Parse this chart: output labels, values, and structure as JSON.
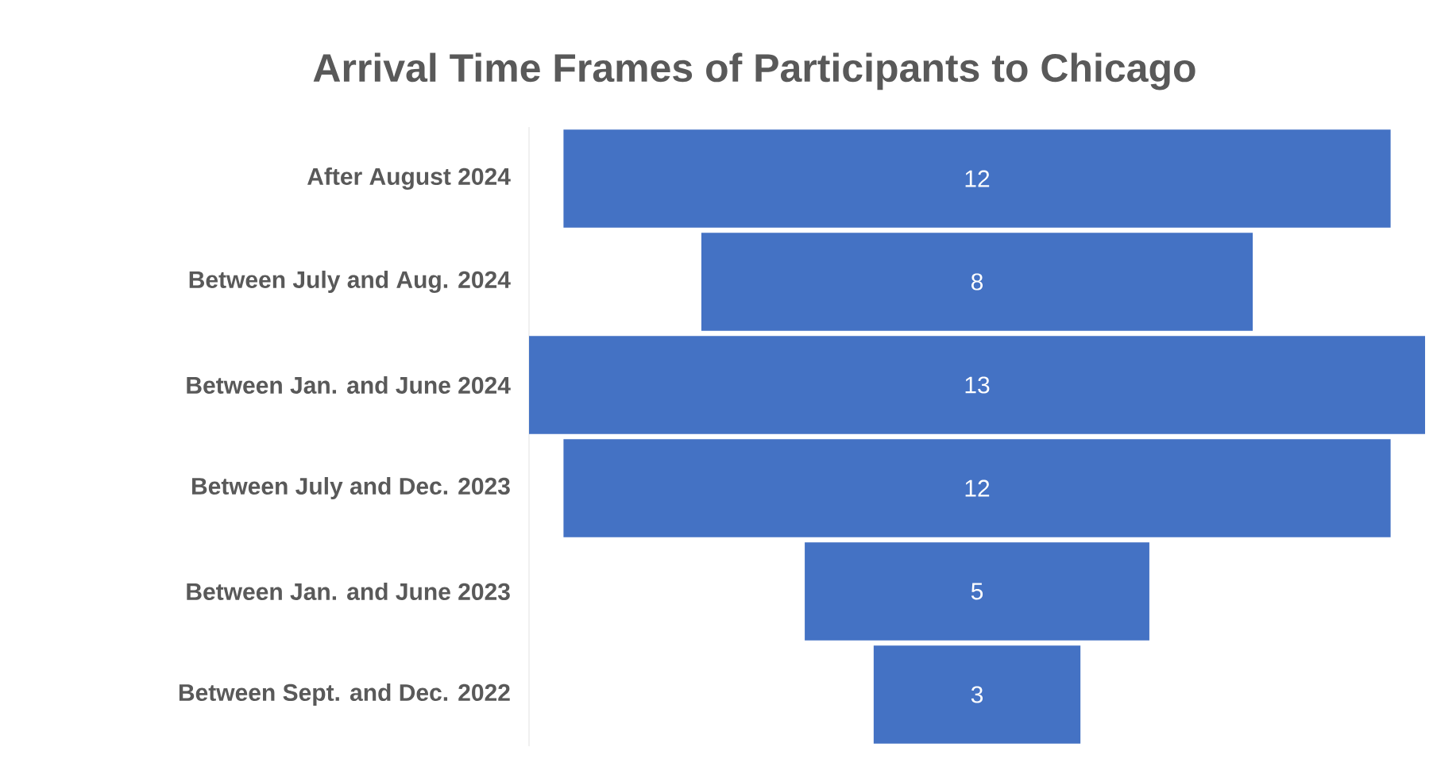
{
  "chart_data": {
    "type": "other",
    "title": "Arrival Time Frames of Participants to Chicago",
    "categories": [
      "After August 2024",
      "Between July and Aug. 2024",
      "Between Jan. and June 2024",
      "Between July and Dec. 2023",
      "Between Jan. and June  2023",
      "Between Sept. and Dec. 2022"
    ],
    "values": [
      12,
      8,
      13,
      12,
      5,
      3
    ],
    "color": "#4472c4",
    "data_labels": true
  }
}
